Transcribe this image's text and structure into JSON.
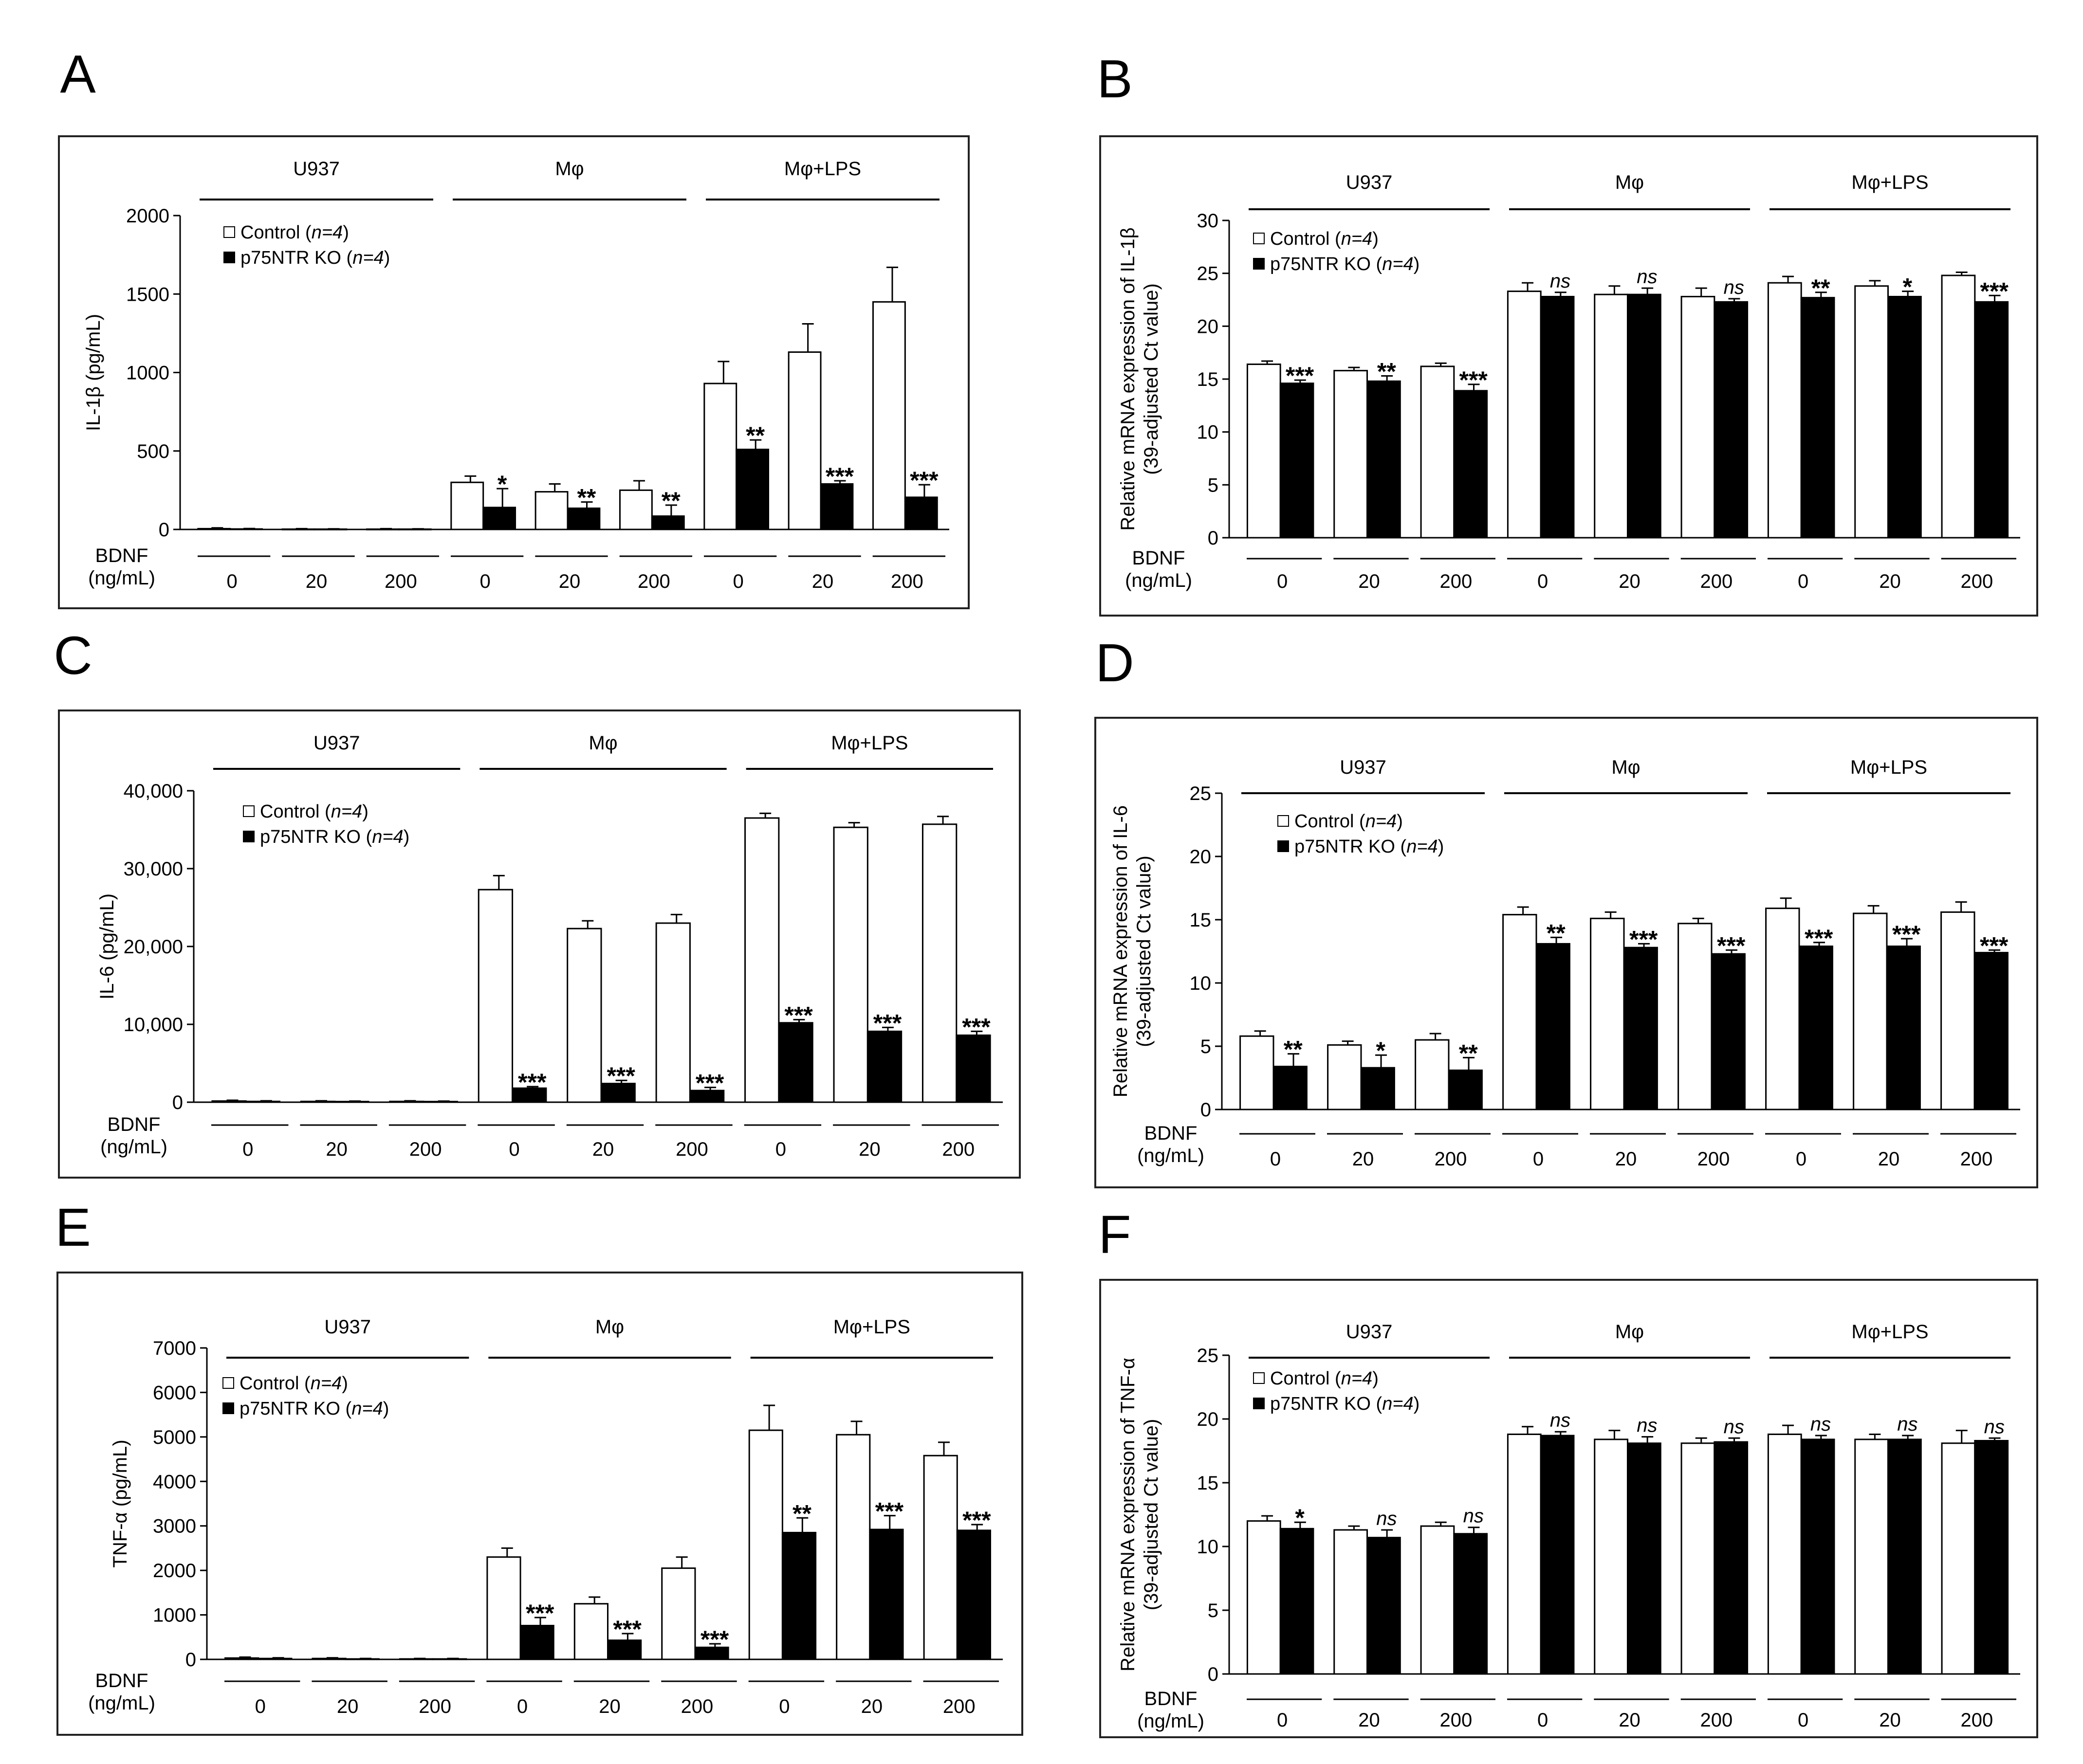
{
  "figure": {
    "groups": [
      "U937",
      "Mφ",
      "Mφ+LPS"
    ],
    "bdnf_label": [
      "BDNF",
      "(ng/mL)"
    ],
    "doses": [
      "0",
      "20",
      "200"
    ],
    "legend": [
      {
        "name": "Control",
        "n": "n=4",
        "color": "#ffffff"
      },
      {
        "name": "p75NTR KO",
        "n": "n=4",
        "color": "#000000"
      }
    ]
  },
  "chart_data": [
    {
      "panel": "A",
      "type": "bar",
      "ylabel": "IL-1β (pg/mL)",
      "ylim": [
        0,
        2000
      ],
      "yticks": [
        "0",
        "500",
        "1000",
        "1500",
        "2000"
      ],
      "categories": [
        "U937 0",
        "U937 20",
        "U937 200",
        "Mφ 0",
        "Mφ 20",
        "Mφ 200",
        "Mφ+LPS 0",
        "Mφ+LPS 20",
        "Mφ+LPS 200"
      ],
      "series": [
        {
          "name": "Control",
          "values": [
            5,
            2,
            2,
            300,
            240,
            250,
            930,
            1130,
            1450
          ],
          "errors": [
            5,
            3,
            3,
            40,
            50,
            60,
            140,
            180,
            220
          ]
        },
        {
          "name": "p75NTR KO",
          "values": [
            3,
            2,
            2,
            140,
            135,
            85,
            510,
            290,
            205
          ],
          "errors": [
            3,
            2,
            2,
            120,
            40,
            70,
            60,
            20,
            80
          ]
        }
      ],
      "significance": [
        "",
        "",
        "",
        "*",
        "**",
        "**",
        "**",
        "***",
        "***"
      ]
    },
    {
      "panel": "B",
      "type": "bar",
      "ylabel": "Relative mRNA expression of IL-1β",
      "ylabel2": "(39-adjusted Ct value)",
      "ylabel_gene": "IL-1β",
      "ylim": [
        0,
        30
      ],
      "yticks": [
        "0",
        "5",
        "10",
        "15",
        "20",
        "25",
        "30"
      ],
      "categories": [
        "U937 0",
        "U937 20",
        "U937 200",
        "Mφ 0",
        "Mφ 20",
        "Mφ 200",
        "Mφ+LPS 0",
        "Mφ+LPS 20",
        "Mφ+LPS 200"
      ],
      "series": [
        {
          "name": "Control",
          "values": [
            16.4,
            15.8,
            16.2,
            23.3,
            23.0,
            22.8,
            24.1,
            23.8,
            24.8
          ],
          "errors": [
            0.3,
            0.3,
            0.3,
            0.8,
            0.8,
            0.8,
            0.6,
            0.5,
            0.3
          ]
        },
        {
          "name": "p75NTR KO",
          "values": [
            14.6,
            14.8,
            13.9,
            22.8,
            23.0,
            22.3,
            22.7,
            22.8,
            22.3
          ],
          "errors": [
            0.3,
            0.5,
            0.6,
            0.4,
            0.6,
            0.3,
            0.5,
            0.5,
            0.6
          ]
        }
      ],
      "significance": [
        "***",
        "**",
        "***",
        "ns",
        "ns",
        "ns",
        "**",
        "*",
        "***"
      ]
    },
    {
      "panel": "C",
      "type": "bar",
      "ylabel": "IL-6 (pg/mL)",
      "ylim": [
        0,
        40000
      ],
      "yticks": [
        "0",
        "10,000",
        "20,000",
        "30,000",
        "40,000"
      ],
      "categories": [
        "U937 0",
        "U937 20",
        "U937 200",
        "Mφ 0",
        "Mφ 20",
        "Mφ 200",
        "Mφ+LPS 0",
        "Mφ+LPS 20",
        "Mφ+LPS 200"
      ],
      "series": [
        {
          "name": "Control",
          "values": [
            150,
            100,
            100,
            27300,
            22300,
            23000,
            36500,
            35300,
            35700
          ],
          "errors": [
            100,
            80,
            80,
            1800,
            1000,
            1100,
            600,
            600,
            1000
          ]
        },
        {
          "name": "p75NTR KO",
          "values": [
            100,
            80,
            80,
            1800,
            2400,
            1500,
            10200,
            9100,
            8600
          ],
          "errors": [
            80,
            60,
            60,
            200,
            400,
            400,
            400,
            500,
            500
          ]
        }
      ],
      "significance": [
        "",
        "",
        "",
        "***",
        "***",
        "***",
        "***",
        "***",
        "***"
      ]
    },
    {
      "panel": "D",
      "type": "bar",
      "ylabel": "Relative mRNA expression of IL-6",
      "ylabel2": "(39-adjusted Ct value)",
      "ylabel_gene": "IL-6",
      "ylim": [
        0,
        25
      ],
      "yticks": [
        "0",
        "5",
        "10",
        "15",
        "20",
        "25"
      ],
      "categories": [
        "U937 0",
        "U937 20",
        "U937 200",
        "Mφ 0",
        "Mφ 20",
        "Mφ 200",
        "Mφ+LPS 0",
        "Mφ+LPS 20",
        "Mφ+LPS 200"
      ],
      "series": [
        {
          "name": "Control",
          "values": [
            5.8,
            5.1,
            5.5,
            15.4,
            15.1,
            14.7,
            15.9,
            15.5,
            15.6
          ],
          "errors": [
            0.4,
            0.3,
            0.5,
            0.6,
            0.5,
            0.4,
            0.8,
            0.6,
            0.8
          ]
        },
        {
          "name": "p75NTR KO",
          "values": [
            3.4,
            3.3,
            3.1,
            13.1,
            12.8,
            12.3,
            12.9,
            12.9,
            12.4
          ],
          "errors": [
            1.0,
            1.0,
            1.0,
            0.5,
            0.3,
            0.3,
            0.3,
            0.6,
            0.2
          ]
        }
      ],
      "significance": [
        "**",
        "*",
        "**",
        "**",
        "***",
        "***",
        "***",
        "***",
        "***"
      ]
    },
    {
      "panel": "E",
      "type": "bar",
      "ylabel": "TNF-α (pg/mL)",
      "ylim": [
        0,
        7000
      ],
      "yticks": [
        "0",
        "1000",
        "2000",
        "3000",
        "4000",
        "5000",
        "6000",
        "7000"
      ],
      "categories": [
        "U937 0",
        "U937 20",
        "U937 200",
        "Mφ 0",
        "Mφ 20",
        "Mφ 200",
        "Mφ+LPS 0",
        "Mφ+LPS 20",
        "Mφ+LPS 200"
      ],
      "series": [
        {
          "name": "Control",
          "values": [
            30,
            20,
            10,
            2300,
            1250,
            2050,
            5150,
            5050,
            4580
          ],
          "errors": [
            20,
            15,
            10,
            200,
            150,
            250,
            560,
            300,
            300
          ]
        },
        {
          "name": "p75NTR KO",
          "values": [
            20,
            10,
            10,
            760,
            430,
            270,
            2850,
            2920,
            2900
          ],
          "errors": [
            15,
            10,
            10,
            180,
            150,
            80,
            330,
            310,
            130
          ]
        }
      ],
      "significance": [
        "",
        "",
        "",
        "***",
        "***",
        "***",
        "**",
        "***",
        "***"
      ]
    },
    {
      "panel": "F",
      "type": "bar",
      "ylabel": "Relative mRNA expression of TNF-α",
      "ylabel2": "(39-adjusted Ct value)",
      "ylabel_gene": "TNF-α",
      "ylim": [
        0,
        25
      ],
      "yticks": [
        "0",
        "5",
        "10",
        "15",
        "20",
        "25"
      ],
      "categories": [
        "U937 0",
        "U937 20",
        "U937 200",
        "Mφ 0",
        "Mφ 20",
        "Mφ 200",
        "Mφ+LPS 0",
        "Mφ+LPS 20",
        "Mφ+LPS 200"
      ],
      "series": [
        {
          "name": "Control",
          "values": [
            12.0,
            11.3,
            11.6,
            18.8,
            18.4,
            18.1,
            18.8,
            18.4,
            18.1
          ],
          "errors": [
            0.4,
            0.3,
            0.3,
            0.6,
            0.7,
            0.4,
            0.7,
            0.4,
            1.0
          ]
        },
        {
          "name": "p75NTR KO",
          "values": [
            11.4,
            10.7,
            11.0,
            18.7,
            18.1,
            18.2,
            18.4,
            18.4,
            18.3
          ],
          "errors": [
            0.5,
            0.6,
            0.5,
            0.3,
            0.5,
            0.3,
            0.3,
            0.3,
            0.2
          ]
        }
      ],
      "significance": [
        "*",
        "ns",
        "ns",
        "ns",
        "ns",
        "ns",
        "ns",
        "ns",
        "ns"
      ]
    }
  ]
}
